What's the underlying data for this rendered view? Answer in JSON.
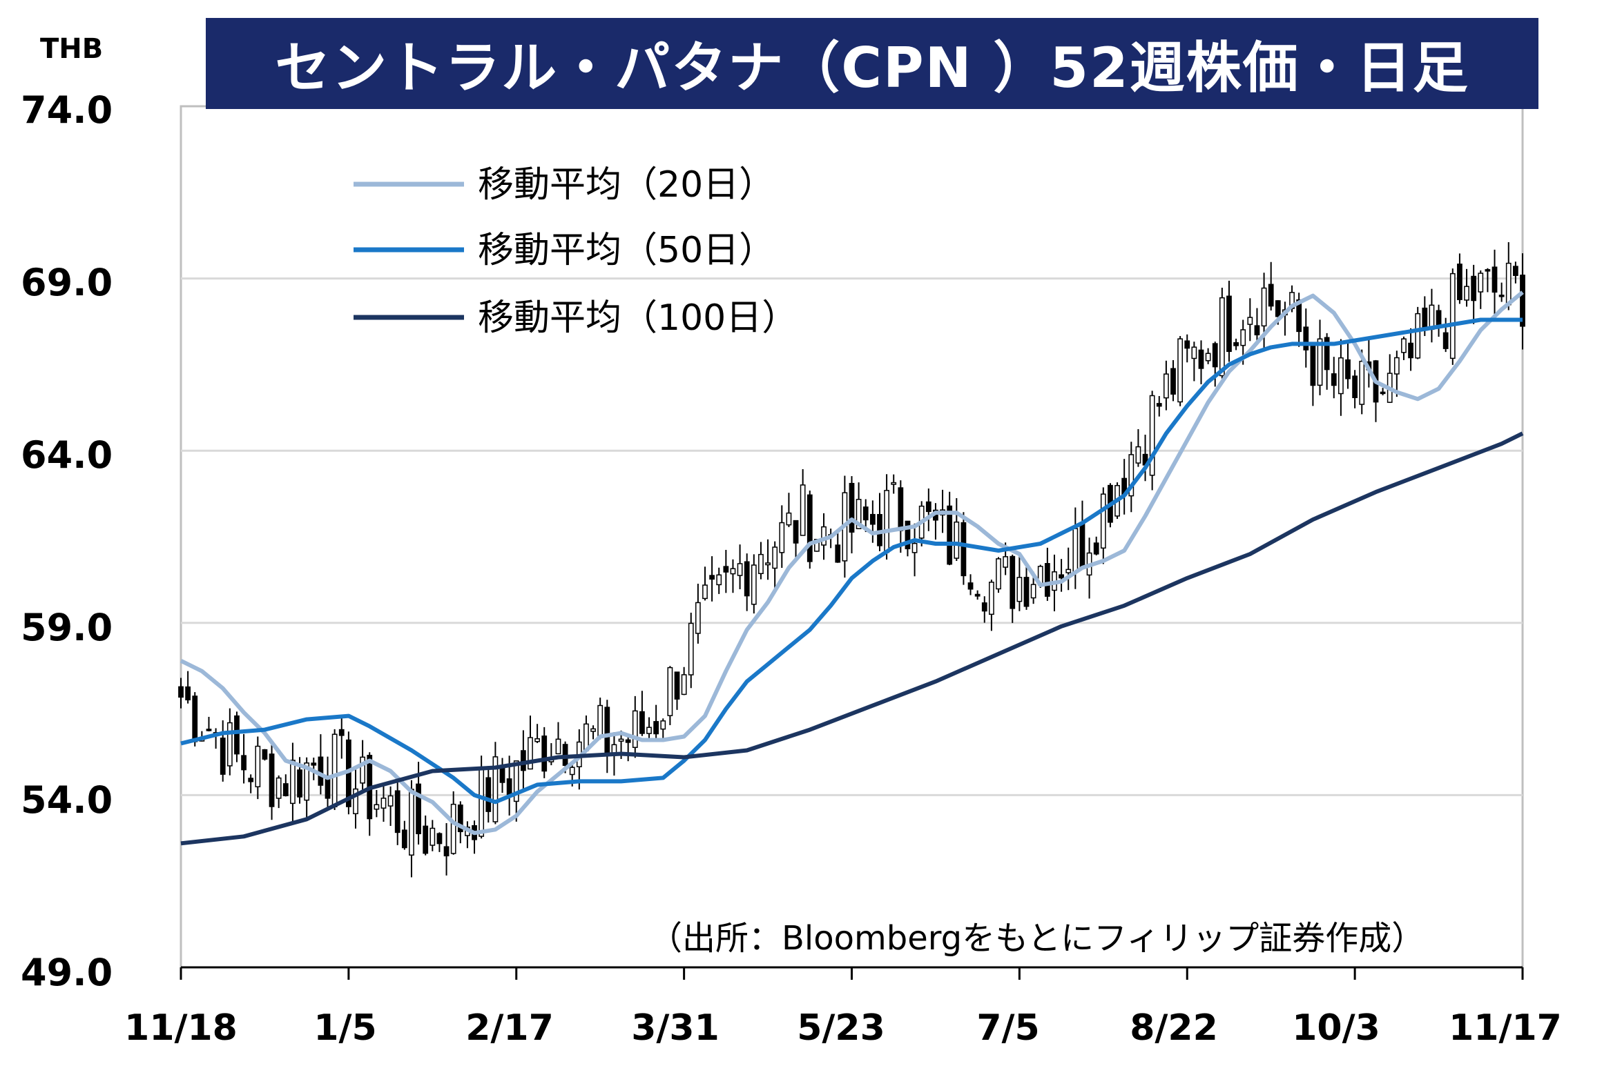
{
  "title": "セントラル・パタナ（CPN ）52週株価・日足",
  "unit": "THB",
  "source": "（出所：Bloombergをもとにフィリップ証券作成）",
  "chart_data": {
    "type": "candlestick",
    "ylim": [
      49.0,
      74.0
    ],
    "yticks": [
      "74.0",
      "69.0",
      "64.0",
      "59.0",
      "54.0",
      "49.0"
    ],
    "xticks": [
      "11/18",
      "1/5",
      "2/17",
      "3/31",
      "5/23",
      "7/5",
      "8/22",
      "10/3",
      "11/17"
    ],
    "grid": true,
    "legend_position": "top-left",
    "colors": {
      "up": "#ffffff",
      "down": "#000000",
      "ma20": "#9cb8d8",
      "ma50": "#1a78c8",
      "ma100": "#1c3560",
      "title_bg": "#1a2a6a"
    },
    "series": [
      {
        "name": "移動平均（20日）",
        "key": "ma20",
        "points": [
          [
            0,
            57.9
          ],
          [
            3,
            57.6
          ],
          [
            6,
            57.1
          ],
          [
            9,
            56.4
          ],
          [
            12,
            55.8
          ],
          [
            15,
            55.0
          ],
          [
            18,
            54.8
          ],
          [
            21,
            54.5
          ],
          [
            24,
            54.7
          ],
          [
            27,
            55.0
          ],
          [
            30,
            54.7
          ],
          [
            33,
            54.1
          ],
          [
            36,
            53.8
          ],
          [
            39,
            53.2
          ],
          [
            42,
            52.9
          ],
          [
            45,
            53.0
          ],
          [
            48,
            53.4
          ],
          [
            51,
            54.1
          ],
          [
            54,
            54.6
          ],
          [
            57,
            55.1
          ],
          [
            60,
            55.7
          ],
          [
            63,
            55.8
          ],
          [
            66,
            55.6
          ],
          [
            69,
            55.6
          ],
          [
            72,
            55.7
          ],
          [
            75,
            56.3
          ],
          [
            78,
            57.6
          ],
          [
            81,
            58.8
          ],
          [
            84,
            59.6
          ],
          [
            87,
            60.6
          ],
          [
            90,
            61.3
          ],
          [
            93,
            61.5
          ],
          [
            96,
            62.0
          ],
          [
            99,
            61.6
          ],
          [
            102,
            61.7
          ],
          [
            105,
            61.8
          ],
          [
            108,
            62.2
          ],
          [
            111,
            62.2
          ],
          [
            114,
            61.8
          ],
          [
            117,
            61.3
          ],
          [
            120,
            61.0
          ],
          [
            123,
            60.1
          ],
          [
            126,
            60.2
          ],
          [
            129,
            60.6
          ],
          [
            132,
            60.8
          ],
          [
            135,
            61.1
          ],
          [
            138,
            62.1
          ],
          [
            141,
            63.2
          ],
          [
            144,
            64.3
          ],
          [
            147,
            65.4
          ],
          [
            150,
            66.3
          ],
          [
            153,
            66.9
          ],
          [
            156,
            67.6
          ],
          [
            159,
            68.2
          ],
          [
            162,
            68.5
          ],
          [
            165,
            68.0
          ],
          [
            168,
            67.1
          ],
          [
            171,
            66.0
          ],
          [
            174,
            65.7
          ],
          [
            177,
            65.5
          ],
          [
            180,
            65.8
          ],
          [
            183,
            66.6
          ],
          [
            186,
            67.5
          ],
          [
            189,
            68.1
          ],
          [
            192,
            68.6
          ]
        ]
      },
      {
        "name": "移動平均（50日）",
        "key": "ma50",
        "points": [
          [
            0,
            55.5
          ],
          [
            6,
            55.8
          ],
          [
            12,
            55.9
          ],
          [
            18,
            56.2
          ],
          [
            24,
            56.3
          ],
          [
            27,
            56.0
          ],
          [
            33,
            55.3
          ],
          [
            39,
            54.5
          ],
          [
            42,
            54.0
          ],
          [
            45,
            53.8
          ],
          [
            51,
            54.3
          ],
          [
            57,
            54.4
          ],
          [
            63,
            54.4
          ],
          [
            69,
            54.5
          ],
          [
            72,
            55.0
          ],
          [
            75,
            55.6
          ],
          [
            78,
            56.5
          ],
          [
            81,
            57.3
          ],
          [
            84,
            57.8
          ],
          [
            87,
            58.3
          ],
          [
            90,
            58.8
          ],
          [
            93,
            59.5
          ],
          [
            96,
            60.3
          ],
          [
            99,
            60.8
          ],
          [
            102,
            61.2
          ],
          [
            105,
            61.4
          ],
          [
            108,
            61.3
          ],
          [
            111,
            61.3
          ],
          [
            114,
            61.2
          ],
          [
            117,
            61.1
          ],
          [
            120,
            61.2
          ],
          [
            123,
            61.3
          ],
          [
            126,
            61.6
          ],
          [
            129,
            61.9
          ],
          [
            132,
            62.3
          ],
          [
            135,
            62.7
          ],
          [
            138,
            63.5
          ],
          [
            141,
            64.5
          ],
          [
            144,
            65.3
          ],
          [
            147,
            66.0
          ],
          [
            150,
            66.5
          ],
          [
            153,
            66.8
          ],
          [
            156,
            67.0
          ],
          [
            159,
            67.1
          ],
          [
            162,
            67.1
          ],
          [
            165,
            67.1
          ],
          [
            168,
            67.2
          ],
          [
            171,
            67.3
          ],
          [
            174,
            67.4
          ],
          [
            177,
            67.5
          ],
          [
            180,
            67.6
          ],
          [
            183,
            67.7
          ],
          [
            186,
            67.8
          ],
          [
            189,
            67.8
          ],
          [
            192,
            67.8
          ]
        ]
      },
      {
        "name": "移動平均（100日）",
        "key": "ma100",
        "points": [
          [
            0,
            52.6
          ],
          [
            9,
            52.8
          ],
          [
            18,
            53.3
          ],
          [
            27,
            54.2
          ],
          [
            36,
            54.7
          ],
          [
            45,
            54.8
          ],
          [
            54,
            55.1
          ],
          [
            63,
            55.2
          ],
          [
            72,
            55.1
          ],
          [
            81,
            55.3
          ],
          [
            90,
            55.9
          ],
          [
            99,
            56.6
          ],
          [
            108,
            57.3
          ],
          [
            117,
            58.1
          ],
          [
            126,
            58.9
          ],
          [
            135,
            59.5
          ],
          [
            144,
            60.3
          ],
          [
            153,
            61.0
          ],
          [
            162,
            62.0
          ],
          [
            171,
            62.8
          ],
          [
            180,
            63.5
          ],
          [
            189,
            64.2
          ],
          [
            192,
            64.5
          ]
        ]
      }
    ]
  }
}
